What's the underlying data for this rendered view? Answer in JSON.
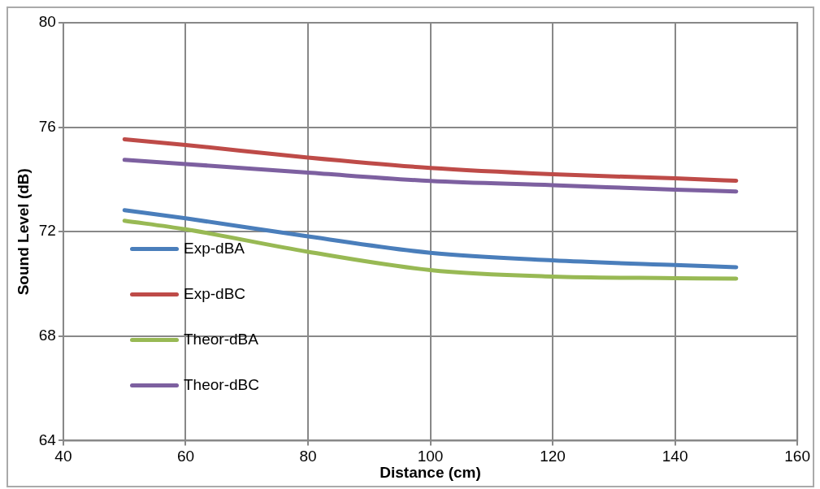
{
  "chart_data": {
    "type": "line",
    "xlabel": "Distance (cm)",
    "ylabel": "Sound Level (dB)",
    "x": [
      50,
      60,
      80,
      100,
      120,
      140,
      150
    ],
    "series": [
      {
        "name": "Exp-dBA",
        "color": "#4a7ebb",
        "values": [
          72.82,
          72.51,
          71.82,
          71.19,
          70.9,
          70.72,
          70.64
        ]
      },
      {
        "name": "Exp-dBC",
        "color": "#be4b48",
        "values": [
          75.54,
          75.32,
          74.84,
          74.44,
          74.2,
          74.04,
          73.95
        ]
      },
      {
        "name": "Theor-dBA",
        "color": "#98b954",
        "values": [
          72.42,
          72.09,
          71.23,
          70.53,
          70.28,
          70.22,
          70.2
        ]
      },
      {
        "name": "Theor-dBC",
        "color": "#7d60a0",
        "values": [
          74.75,
          74.59,
          74.26,
          73.94,
          73.78,
          73.61,
          73.54
        ]
      }
    ],
    "xlim": [
      40,
      160
    ],
    "xticks": [
      40,
      60,
      80,
      100,
      120,
      140,
      160
    ],
    "ylim": [
      64,
      80
    ],
    "yticks": [
      64,
      68,
      72,
      76,
      80
    ],
    "grid": true,
    "legend": "left",
    "marker": "none",
    "line_style": "solid"
  }
}
